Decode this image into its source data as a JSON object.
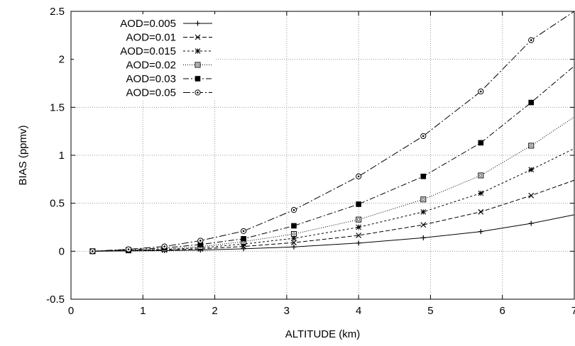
{
  "chart_data": {
    "type": "line",
    "xlabel": "ALTITUDE (km)",
    "ylabel": "BIAS (ppmv)",
    "xlim": [
      0,
      7
    ],
    "ylim": [
      -0.5,
      2.5
    ],
    "xticks": [
      0,
      1,
      2,
      3,
      4,
      5,
      6,
      7
    ],
    "xtick_labels": [
      "0",
      "1",
      "2",
      "3",
      "4",
      "5",
      "6",
      "7"
    ],
    "yticks": [
      -0.5,
      0,
      0.5,
      1,
      1.5,
      2,
      2.5
    ],
    "ytick_labels": [
      "-0.5",
      "0",
      "0.5",
      "1",
      "1.5",
      "2",
      "2.5"
    ],
    "grid": true,
    "legend_position": "top-left",
    "x": [
      0.3,
      0.8,
      1.3,
      1.8,
      2.4,
      3.1,
      4.0,
      4.9,
      5.7,
      6.4
    ],
    "series": [
      {
        "name": "AOD=0.005",
        "dash": "solid",
        "marker": "plus",
        "values": [
          0.0,
          0.003,
          0.006,
          0.012,
          0.025,
          0.045,
          0.085,
          0.14,
          0.205,
          0.29
        ],
        "end_value": 0.38
      },
      {
        "name": "AOD=0.01",
        "dash": "dashed",
        "marker": "cross",
        "values": [
          0.0,
          0.005,
          0.012,
          0.024,
          0.05,
          0.09,
          0.165,
          0.275,
          0.41,
          0.58
        ],
        "end_value": 0.74
      },
      {
        "name": "AOD=0.015",
        "dash": "short-dashed",
        "marker": "star",
        "values": [
          0.0,
          0.008,
          0.018,
          0.036,
          0.075,
          0.135,
          0.25,
          0.41,
          0.605,
          0.85
        ],
        "end_value": 1.07
      },
      {
        "name": "AOD=0.02",
        "dash": "dotted",
        "marker": "open-square",
        "values": [
          0.0,
          0.01,
          0.024,
          0.048,
          0.1,
          0.18,
          0.33,
          0.54,
          0.79,
          1.1
        ],
        "end_value": 1.4
      },
      {
        "name": "AOD=0.03",
        "dash": "dash-dot",
        "marker": "filled-square",
        "values": [
          0.0,
          0.015,
          0.035,
          0.07,
          0.13,
          0.265,
          0.49,
          0.78,
          1.13,
          1.55
        ],
        "end_value": 1.93
      },
      {
        "name": "AOD=0.05",
        "dash": "dash-dot-long",
        "marker": "circle",
        "values": [
          0.0,
          0.02,
          0.05,
          0.11,
          0.21,
          0.43,
          0.78,
          1.2,
          1.665,
          2.2
        ],
        "end_value": 2.5
      }
    ]
  }
}
